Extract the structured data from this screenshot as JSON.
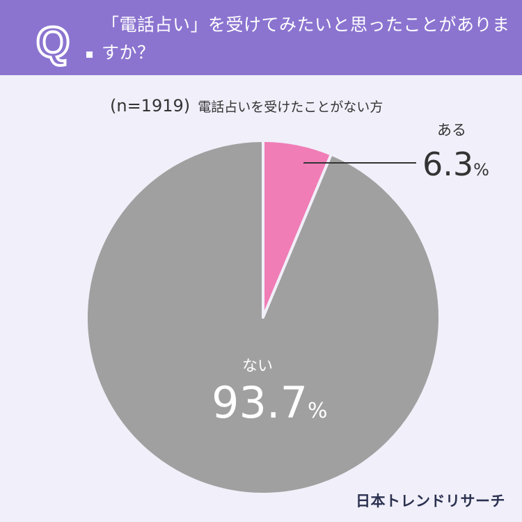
{
  "header": {
    "question_mark": "Q",
    "question": "「電話占い」を受けてみたいと思ったことがありますか？"
  },
  "subtitle": {
    "sample": "(n=1919)",
    "description": "電話占いを受けたことがない方"
  },
  "chart_data": {
    "type": "pie",
    "slices": [
      {
        "label": "ある",
        "value": 6.3,
        "value_label": "6.3",
        "unit": "%",
        "color": "#f07db6"
      },
      {
        "label": "ない",
        "value": 93.7,
        "value_label": "93.7",
        "unit": "%",
        "color": "#a0a0a0"
      }
    ],
    "start": "12 o'clock",
    "direction": "clockwise"
  },
  "colors": {
    "header": "#8b74d0",
    "background": "#f1eff9",
    "slice_border": "#f1eff9"
  },
  "footer": {
    "brand": "日本トレンドリサーチ"
  }
}
